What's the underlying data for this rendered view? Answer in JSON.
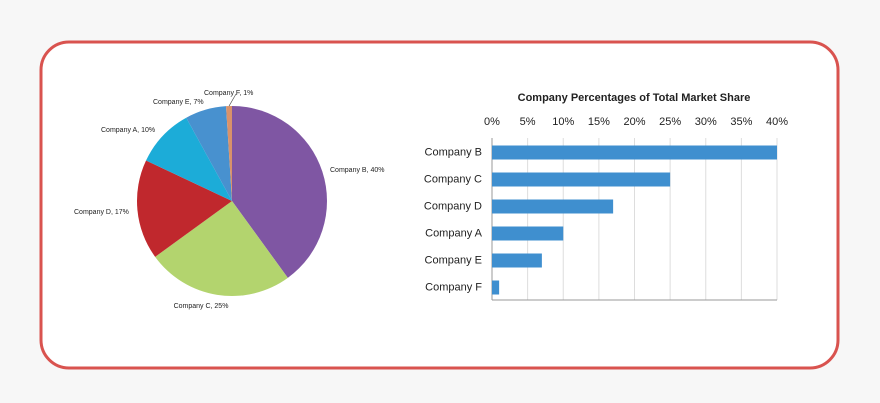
{
  "chart_data": [
    {
      "type": "pie",
      "values": [
        40,
        25,
        17,
        10,
        7,
        1
      ],
      "value_labels": [
        "Company B, 40%",
        "Company C, 25%",
        "Company D, 17%",
        "Company A, 10%",
        "Company E, 7%",
        "Company F, 1%"
      ],
      "colors": [
        "#7f56a3",
        "#b3d46e",
        "#c0282d",
        "#1cacd8",
        "#4891cf",
        "#d9926a"
      ]
    },
    {
      "type": "bar",
      "title": "Company Percentages  of  Total  Market  Share",
      "categories": [
        "Company B",
        "Company C",
        "Company D",
        "Company A",
        "Company E",
        "Company F"
      ],
      "values": [
        40,
        25,
        17,
        10,
        7,
        1
      ],
      "color": "#3f8fcf",
      "xlim": [
        0,
        40
      ],
      "xticks": [
        {
          "value": 0,
          "label": "0%"
        },
        {
          "value": 5,
          "label": "5%"
        },
        {
          "value": 10,
          "label": "10%"
        },
        {
          "value": 15,
          "label": "15%"
        },
        {
          "value": 20,
          "label": "20%"
        },
        {
          "value": 25,
          "label": "25%"
        },
        {
          "value": 30,
          "label": "30%"
        },
        {
          "value": 35,
          "label": "35%"
        },
        {
          "value": 40,
          "label": "40%"
        }
      ],
      "grid": true
    }
  ]
}
